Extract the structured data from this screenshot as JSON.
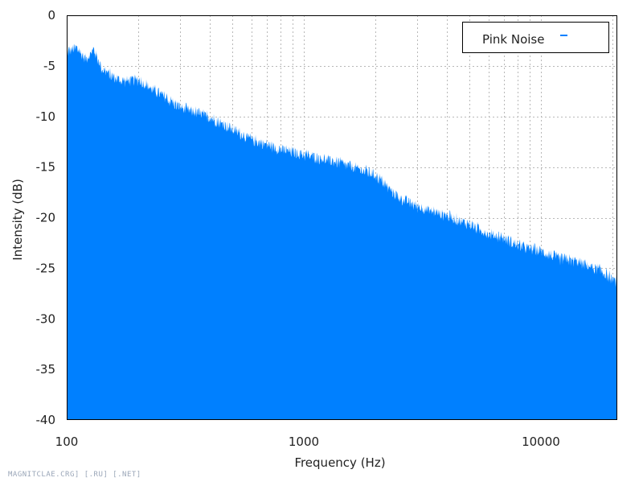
{
  "chart_data": {
    "type": "area",
    "title": "",
    "xlabel": "Frequency (Hz)",
    "ylabel": "Intensity (dB)",
    "xscale": "log",
    "xlim": [
      100,
      21000
    ],
    "ylim": [
      -40,
      0
    ],
    "grid": true,
    "legend_placement": "top-right",
    "x_tick_labels": [
      {
        "value": 100,
        "label": "100"
      },
      {
        "value": 1000,
        "label": "1000"
      },
      {
        "value": 10000,
        "label": "10000"
      }
    ],
    "y_tick_labels": [
      {
        "value": 0,
        "label": "0"
      },
      {
        "value": -5,
        "label": "-5"
      },
      {
        "value": -10,
        "label": "-10"
      },
      {
        "value": -15,
        "label": "-15"
      },
      {
        "value": -20,
        "label": "-20"
      },
      {
        "value": -25,
        "label": "-25"
      },
      {
        "value": -30,
        "label": "-30"
      },
      {
        "value": -35,
        "label": "-35"
      },
      {
        "value": -40,
        "label": "-40"
      }
    ],
    "series": [
      {
        "name": "Pink Noise",
        "color": "#0080ff",
        "x": [
          100,
          110,
          120,
          130,
          140,
          150,
          170,
          200,
          250,
          300,
          400,
          500,
          600,
          700,
          800,
          1000,
          1300,
          1600,
          2000,
          2500,
          3000,
          4000,
          5000,
          6000,
          7000,
          8000,
          10000,
          12000,
          14000,
          16000,
          18000,
          20000,
          21000
        ],
        "y": [
          -3.4,
          -3.1,
          -4.1,
          -3.2,
          -5.0,
          -5.6,
          -6.3,
          -6.2,
          -7.7,
          -8.9,
          -9.9,
          -11.1,
          -12.1,
          -12.6,
          -13.1,
          -13.6,
          -14.2,
          -14.8,
          -15.6,
          -17.8,
          -18.7,
          -19.6,
          -20.5,
          -21.4,
          -21.8,
          -22.6,
          -23.1,
          -23.9,
          -24.1,
          -24.6,
          -25.1,
          -25.9,
          -26.3
        ]
      }
    ]
  },
  "watermark": "MAGNITCLAE.CRG] [.RU] [.NET]"
}
